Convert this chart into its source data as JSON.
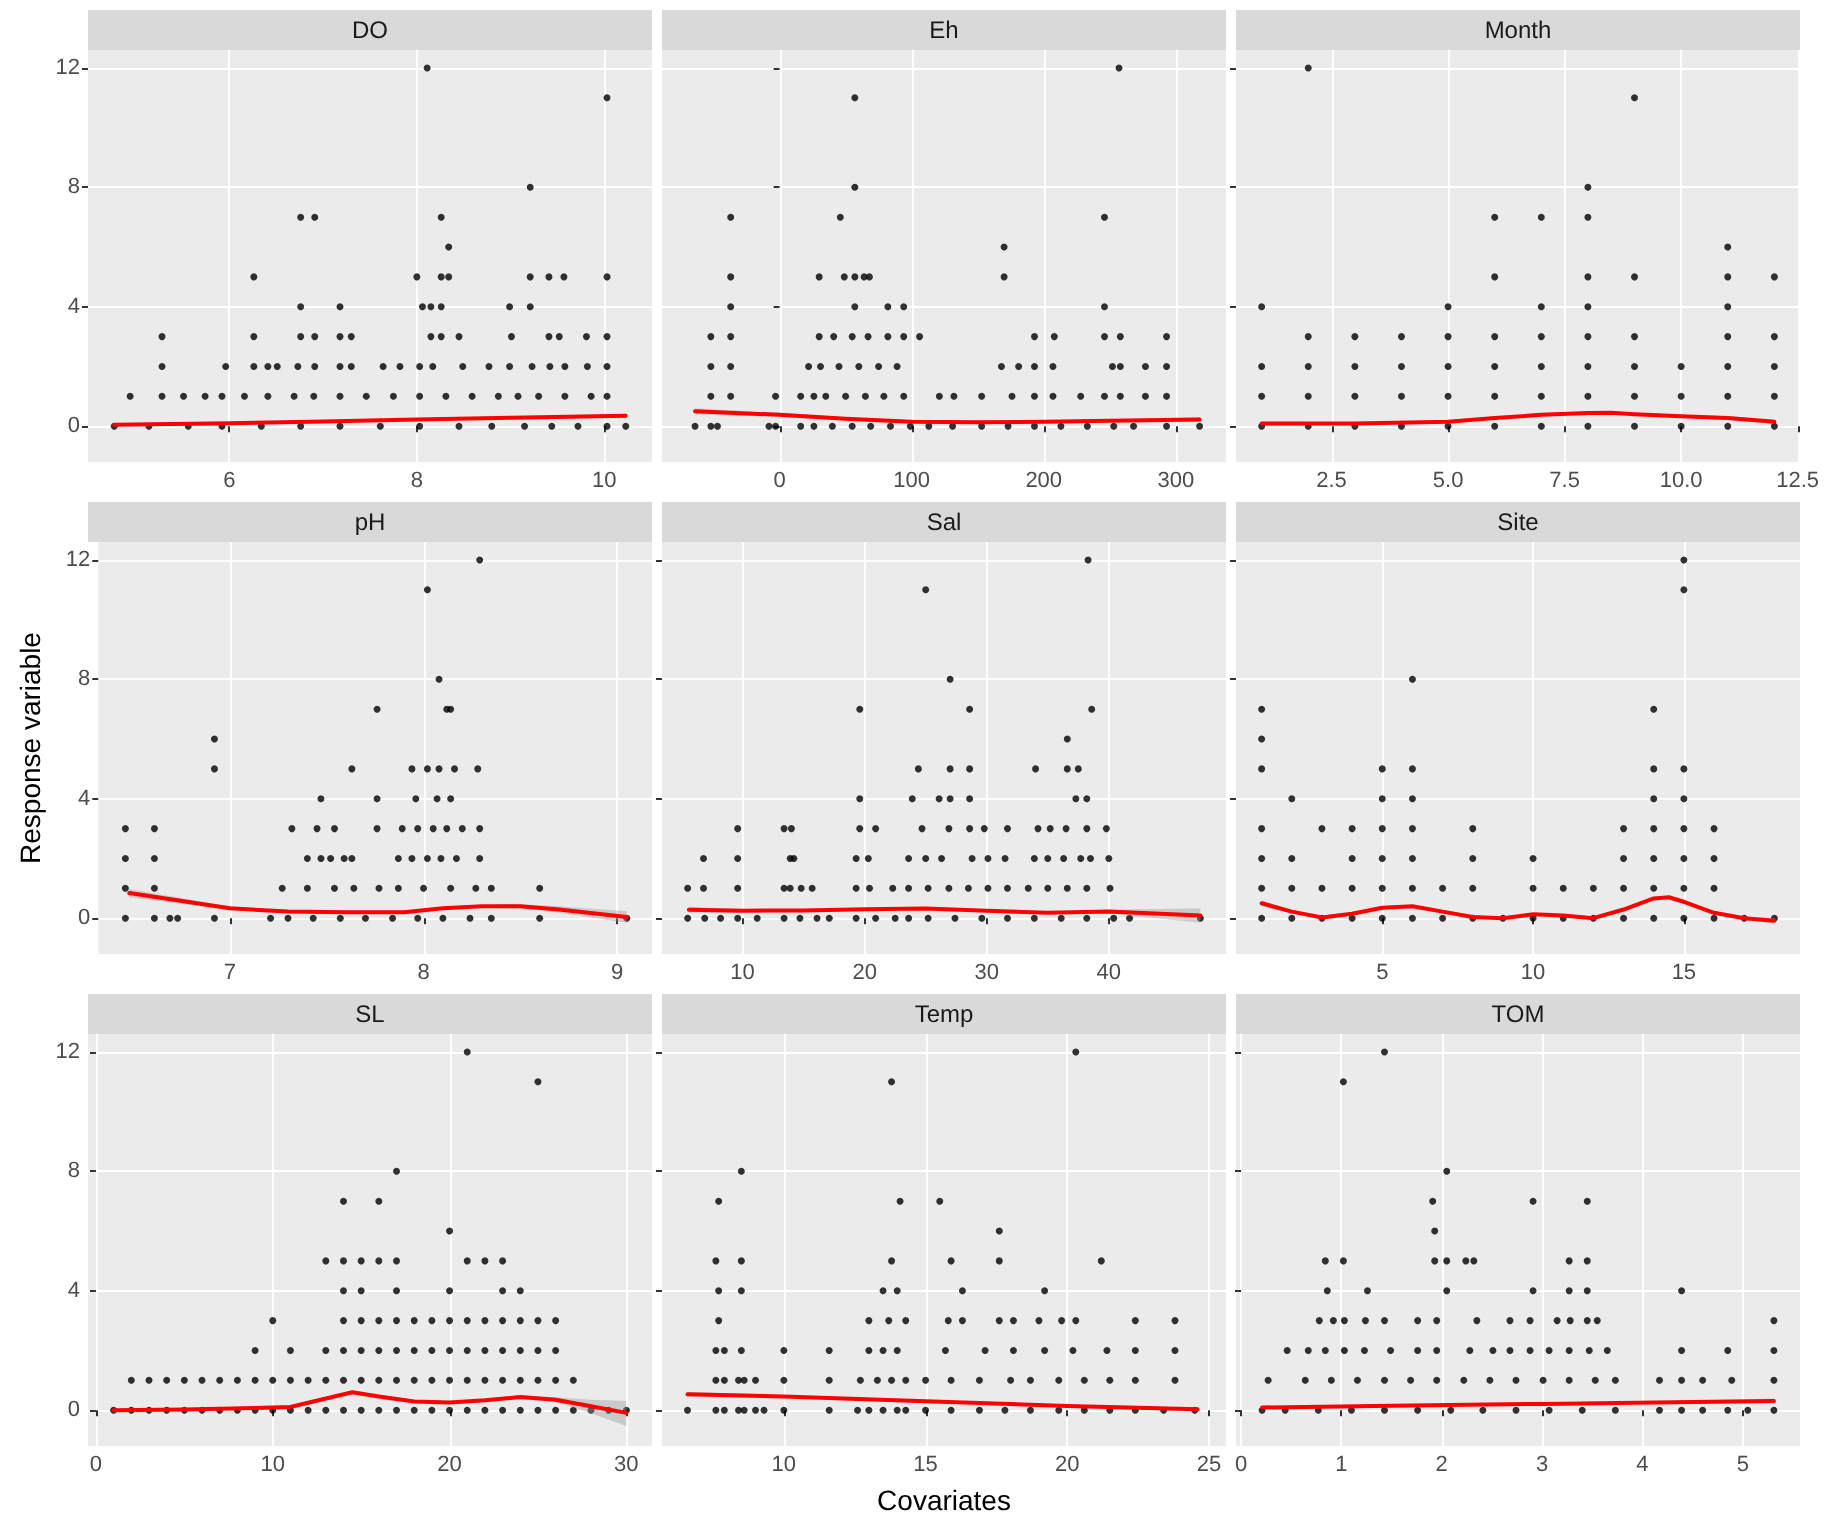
{
  "chart_data": [
    {
      "type": "scatter",
      "title": "DO",
      "marker": "circle",
      "grid": true,
      "xlim": [
        4.49,
        10.51
      ],
      "xticks": [
        6,
        8,
        10
      ],
      "ylim": [
        -1.2,
        12.6
      ],
      "yticks": [
        0,
        4,
        8,
        12
      ],
      "series": [
        {
          "color": "#000000",
          "x": [
            8.11,
            10.03,
            9.21,
            6.76,
            6.91,
            8.26,
            8.34,
            6.26,
            8.0,
            8.26,
            8.34,
            9.21,
            9.41,
            9.57,
            10.03,
            6.76,
            7.18,
            8.06,
            8.15,
            8.26,
            8.99,
            9.21,
            5.28,
            6.26,
            6.76,
            6.91,
            7.18,
            7.3,
            8.15,
            8.26,
            8.45,
            9.01,
            9.41,
            9.52,
            9.81,
            10.03,
            5.28,
            5.96,
            6.26,
            6.41,
            6.51,
            6.73,
            6.91,
            7.18,
            7.3,
            7.64,
            7.82,
            8.03,
            8.17,
            8.49,
            8.77,
            8.99,
            9.23,
            9.42,
            9.58,
            9.82,
            10.03,
            4.94,
            5.28,
            5.51,
            5.74,
            5.92,
            6.16,
            6.41,
            6.69,
            6.9,
            7.18,
            7.46,
            7.75,
            8.03,
            8.31,
            8.59,
            8.87,
            9.08,
            9.3,
            9.58,
            9.86,
            10.03,
            4.77,
            5.14,
            5.56,
            5.92,
            6.34,
            6.76,
            7.18,
            7.61,
            8.03,
            8.45,
            8.8,
            9.15,
            9.44,
            9.72,
            10.03,
            10.23
          ],
          "values": [
            12,
            11,
            8,
            7,
            7,
            7,
            6,
            5,
            5,
            5,
            5,
            5,
            5,
            5,
            5,
            4,
            4,
            4,
            4,
            4,
            4,
            4,
            3,
            3,
            3,
            3,
            3,
            3,
            3,
            3,
            3,
            3,
            3,
            3,
            3,
            3,
            2,
            2,
            2,
            2,
            2,
            2,
            2,
            2,
            2,
            2,
            2,
            2,
            2,
            2,
            2,
            2,
            2,
            2,
            2,
            2,
            2,
            1,
            1,
            1,
            1,
            1,
            1,
            1,
            1,
            1,
            1,
            1,
            1,
            1,
            1,
            1,
            1,
            1,
            1,
            1,
            1,
            1,
            0,
            0,
            0,
            0,
            0,
            0,
            0,
            0,
            0,
            0,
            0,
            0,
            0,
            0,
            0,
            0
          ]
        },
        {
          "type": "line",
          "color": "#ff0000",
          "marker": "none",
          "x": [
            4.77,
            6,
            7,
            8,
            9,
            10.23
          ],
          "values": [
            0.05,
            0.1,
            0.16,
            0.22,
            0.28,
            0.35
          ],
          "lower": [
            0,
            0.06,
            0.13,
            0.19,
            0.24,
            0.28
          ],
          "upper": [
            0.1,
            0.14,
            0.19,
            0.25,
            0.32,
            0.42
          ]
        }
      ]
    },
    {
      "type": "scatter",
      "title": "Eh",
      "marker": "circle",
      "grid": true,
      "tick_labels": "x",
      "xlim": [
        -89,
        338
      ],
      "xticks": [
        0,
        100,
        200,
        300
      ],
      "ylim": [
        -1.2,
        12.6
      ],
      "yticks": [
        0,
        4,
        8,
        12
      ],
      "series": [
        {
          "color": "#000000",
          "x": [
            57,
            257,
            57,
            -37,
            46,
            246,
            170,
            -37,
            30,
            49,
            57,
            64,
            68,
            170,
            -37,
            57,
            82,
            94,
            246,
            -52,
            -37,
            30,
            41,
            55,
            67,
            82,
            94,
            106,
            193,
            208,
            246,
            258,
            293,
            -52,
            -37,
            22,
            31,
            45,
            60,
            75,
            89,
            168,
            181,
            193,
            207,
            252,
            258,
            277,
            293,
            -52,
            -37,
            -3,
            16,
            26,
            35,
            50,
            65,
            79,
            94,
            121,
            132,
            153,
            176,
            193,
            207,
            228,
            246,
            258,
            277,
            293,
            -64,
            -52,
            -47,
            -8,
            -3,
            16,
            26,
            40,
            55,
            69,
            84,
            99,
            113,
            131,
            153,
            173,
            193,
            213,
            233,
            253,
            268,
            293,
            318
          ],
          "values": [
            11,
            12,
            8,
            7,
            7,
            7,
            6,
            5,
            5,
            5,
            5,
            5,
            5,
            5,
            4,
            4,
            4,
            4,
            4,
            3,
            3,
            3,
            3,
            3,
            3,
            3,
            3,
            3,
            3,
            3,
            3,
            3,
            3,
            2,
            2,
            2,
            2,
            2,
            2,
            2,
            2,
            2,
            2,
            2,
            2,
            2,
            2,
            2,
            2,
            1,
            1,
            1,
            1,
            1,
            1,
            1,
            1,
            1,
            1,
            1,
            1,
            1,
            1,
            1,
            1,
            1,
            1,
            1,
            1,
            1,
            0,
            0,
            0,
            0,
            0,
            0,
            0,
            0,
            0,
            0,
            0,
            0,
            0,
            0,
            0,
            0,
            0,
            0,
            0,
            0,
            0,
            0,
            0
          ]
        },
        {
          "type": "line",
          "color": "#ff0000",
          "marker": "none",
          "x": [
            -64,
            0,
            50,
            100,
            150,
            200,
            250,
            318
          ],
          "values": [
            0.5,
            0.38,
            0.25,
            0.15,
            0.13,
            0.15,
            0.18,
            0.22
          ],
          "lower": [
            0.4,
            0.31,
            0.2,
            0.11,
            0.09,
            0.11,
            0.13,
            0.14
          ],
          "upper": [
            0.6,
            0.45,
            0.3,
            0.19,
            0.17,
            0.19,
            0.23,
            0.3
          ]
        }
      ]
    },
    {
      "type": "scatter",
      "title": "Month",
      "marker": "circle",
      "grid": true,
      "tick_labels": "x",
      "xlim": [
        0.45,
        12.55
      ],
      "xticks": [
        2.5,
        {
          "value": 5,
          "label": "5.0"
        },
        7.5,
        {
          "value": 10,
          "label": "10.0"
        },
        12.5
      ],
      "ylim": [
        -1.2,
        12.6
      ],
      "yticks": [
        0,
        4,
        8,
        12
      ],
      "series": [
        {
          "color": "#000000",
          "x": [
            1,
            1,
            1,
            1,
            2,
            2,
            2,
            2,
            2,
            3,
            3,
            3,
            3,
            4,
            4,
            4,
            4,
            5,
            5,
            5,
            5,
            5,
            6,
            6,
            6,
            6,
            6,
            6,
            7,
            7,
            7,
            7,
            7,
            7,
            8,
            8,
            8,
            8,
            8,
            8,
            8,
            8,
            9,
            9,
            9,
            9,
            9,
            9,
            10,
            10,
            10,
            11,
            11,
            11,
            11,
            11,
            11,
            11,
            12,
            12,
            12,
            12,
            12
          ],
          "values": [
            0,
            1,
            2,
            4,
            0,
            1,
            2,
            3,
            12,
            0,
            1,
            2,
            3,
            0,
            1,
            2,
            3,
            0,
            1,
            2,
            3,
            4,
            0,
            1,
            2,
            3,
            5,
            7,
            0,
            1,
            2,
            3,
            4,
            7,
            0,
            1,
            2,
            3,
            4,
            5,
            7,
            8,
            0,
            1,
            2,
            3,
            5,
            11,
            0,
            1,
            2,
            0,
            1,
            2,
            3,
            4,
            5,
            6,
            0,
            1,
            2,
            3,
            5
          ]
        },
        {
          "type": "line",
          "color": "#ff0000",
          "marker": "none",
          "x": [
            1,
            3,
            5,
            6,
            7,
            8,
            8.5,
            9,
            10,
            11,
            12
          ],
          "values": [
            0.09,
            0.09,
            0.15,
            0.27,
            0.38,
            0.44,
            0.45,
            0.4,
            0.33,
            0.27,
            0.15
          ],
          "lower": [
            0.03,
            0.05,
            0.11,
            0.22,
            0.33,
            0.39,
            0.4,
            0.35,
            0.28,
            0.21,
            0.08
          ],
          "upper": [
            0.15,
            0.13,
            0.19,
            0.32,
            0.43,
            0.49,
            0.5,
            0.45,
            0.38,
            0.33,
            0.22
          ]
        }
      ]
    },
    {
      "type": "scatter",
      "title": "pH",
      "ylabel": "Response variable",
      "marker": "circle",
      "grid": true,
      "xlim": [
        6.32,
        9.18
      ],
      "xticks": [
        7,
        8,
        9
      ],
      "ylim": [
        -1.2,
        12.6
      ],
      "yticks": [
        0,
        4,
        8,
        12
      ],
      "series": [
        {
          "color": "#000000",
          "x": [
            8.29,
            8.02,
            8.08,
            7.76,
            8.12,
            8.14,
            6.92,
            6.92,
            7.63,
            7.94,
            8.02,
            8.08,
            8.16,
            8.28,
            7.47,
            7.76,
            7.96,
            8.07,
            8.14,
            6.46,
            6.61,
            7.32,
            7.45,
            7.54,
            7.76,
            7.89,
            7.97,
            8.05,
            8.12,
            8.2,
            8.29,
            6.46,
            6.61,
            7.4,
            7.47,
            7.52,
            7.59,
            7.63,
            7.87,
            7.94,
            8.02,
            8.09,
            8.17,
            8.29,
            6.46,
            6.61,
            7.27,
            7.4,
            7.54,
            7.64,
            7.77,
            7.87,
            8.0,
            8.14,
            8.27,
            8.35,
            8.6,
            6.46,
            6.61,
            6.69,
            6.73,
            6.92,
            7.21,
            7.3,
            7.43,
            7.57,
            7.7,
            7.84,
            7.97,
            8.1,
            8.24,
            8.35,
            8.6,
            9.05
          ],
          "values": [
            12,
            11,
            8,
            7,
            7,
            7,
            6,
            5,
            5,
            5,
            5,
            5,
            5,
            5,
            4,
            4,
            4,
            4,
            4,
            3,
            3,
            3,
            3,
            3,
            3,
            3,
            3,
            3,
            3,
            3,
            3,
            2,
            2,
            2,
            2,
            2,
            2,
            2,
            2,
            2,
            2,
            2,
            2,
            2,
            1,
            1,
            1,
            1,
            1,
            1,
            1,
            1,
            1,
            1,
            1,
            1,
            1,
            0,
            0,
            0,
            0,
            0,
            0,
            0,
            0,
            0,
            0,
            0,
            0,
            0,
            0,
            0,
            0,
            0
          ]
        },
        {
          "type": "line",
          "color": "#ff0000",
          "marker": "none",
          "x": [
            6.48,
            7,
            7.3,
            7.6,
            7.9,
            8.1,
            8.3,
            8.5,
            8.7,
            9.05
          ],
          "values": [
            0.84,
            0.33,
            0.22,
            0.2,
            0.2,
            0.33,
            0.4,
            0.4,
            0.29,
            0.04
          ],
          "lower": [
            0.7,
            0.27,
            0.18,
            0.16,
            0.16,
            0.29,
            0.35,
            0.33,
            0.18,
            -0.15
          ],
          "upper": [
            0.98,
            0.39,
            0.26,
            0.24,
            0.24,
            0.37,
            0.45,
            0.47,
            0.4,
            0.23
          ]
        }
      ]
    },
    {
      "type": "scatter",
      "title": "Sal",
      "marker": "circle",
      "grid": true,
      "tick_labels": "x",
      "xlim": [
        3.4,
        49.6
      ],
      "xticks": [
        10,
        20,
        30,
        40
      ],
      "ylim": [
        -1.2,
        12.6
      ],
      "yticks": [
        0,
        4,
        8,
        12
      ],
      "series": [
        {
          "color": "#000000",
          "x": [
            38.3,
            25,
            27,
            19.6,
            28.6,
            38.6,
            36.6,
            24.4,
            27,
            28.6,
            34,
            36.6,
            37.5,
            19.6,
            23.9,
            26.1,
            27,
            28.6,
            37.3,
            38.2,
            9.6,
            13.4,
            14.0,
            19.6,
            20.9,
            24.7,
            26.9,
            28.6,
            29.8,
            31.7,
            34.2,
            35.2,
            36.5,
            38.2,
            39.8,
            6.8,
            9.6,
            13.9,
            14.2,
            19.3,
            20.3,
            23.6,
            25,
            26.3,
            28.8,
            30.1,
            31.5,
            33.9,
            35,
            36.3,
            37.7,
            38.5,
            40,
            5.5,
            6.8,
            9.6,
            13.4,
            13.9,
            14.8,
            15.7,
            19.3,
            20.4,
            22.3,
            23.6,
            25.2,
            26.9,
            28.5,
            30.1,
            31.7,
            33.4,
            35,
            36.6,
            38.2,
            40.1,
            5.5,
            6.9,
            8.2,
            9.6,
            11.2,
            13.4,
            14.7,
            16.1,
            17.1,
            19.3,
            20.9,
            22.5,
            23.6,
            25.2,
            27.4,
            29.6,
            31.7,
            33.9,
            36.1,
            38.2,
            40.4,
            41.7,
            47.5
          ],
          "values": [
            12,
            11,
            8,
            7,
            7,
            7,
            6,
            5,
            5,
            5,
            5,
            5,
            5,
            4,
            4,
            4,
            4,
            4,
            4,
            4,
            3,
            3,
            3,
            3,
            3,
            3,
            3,
            3,
            3,
            3,
            3,
            3,
            3,
            3,
            3,
            2,
            2,
            2,
            2,
            2,
            2,
            2,
            2,
            2,
            2,
            2,
            2,
            2,
            2,
            2,
            2,
            2,
            2,
            1,
            1,
            1,
            1,
            1,
            1,
            1,
            1,
            1,
            1,
            1,
            1,
            1,
            1,
            1,
            1,
            1,
            1,
            1,
            1,
            1,
            0,
            0,
            0,
            0,
            0,
            0,
            0,
            0,
            0,
            0,
            0,
            0,
            0,
            0,
            0,
            0,
            0,
            0,
            0,
            0,
            0,
            0,
            0
          ]
        },
        {
          "type": "line",
          "color": "#ff0000",
          "marker": "none",
          "x": [
            5.6,
            10,
            15,
            20,
            25,
            30,
            35,
            40,
            47.5
          ],
          "values": [
            0.28,
            0.25,
            0.26,
            0.3,
            0.32,
            0.25,
            0.18,
            0.22,
            0.09
          ],
          "lower": [
            0.18,
            0.19,
            0.21,
            0.26,
            0.28,
            0.21,
            0.14,
            0.16,
            -0.15
          ],
          "upper": [
            0.38,
            0.31,
            0.31,
            0.34,
            0.36,
            0.29,
            0.22,
            0.28,
            0.33
          ]
        }
      ]
    },
    {
      "type": "scatter",
      "title": "Site",
      "marker": "circle",
      "grid": true,
      "tick_labels": "x",
      "xlim": [
        0.15,
        18.85
      ],
      "xticks": [
        5,
        10,
        15
      ],
      "ylim": [
        -1.2,
        12.6
      ],
      "yticks": [
        0,
        4,
        8,
        12
      ],
      "series": [
        {
          "color": "#000000",
          "x": [
            1,
            1,
            1,
            1,
            1,
            1,
            1,
            2,
            2,
            2,
            2,
            3,
            3,
            3,
            4,
            4,
            4,
            4,
            5,
            5,
            5,
            5,
            5,
            5,
            6,
            6,
            6,
            6,
            6,
            6,
            6,
            7,
            7,
            8,
            8,
            8,
            8,
            9,
            10,
            10,
            10,
            11,
            11,
            12,
            12,
            13,
            13,
            13,
            13,
            14,
            14,
            14,
            14,
            14,
            14,
            14,
            15,
            15,
            15,
            15,
            15,
            15,
            15,
            15,
            16,
            16,
            16,
            16,
            17,
            18
          ],
          "values": [
            0,
            1,
            2,
            3,
            5,
            6,
            7,
            0,
            1,
            2,
            4,
            0,
            1,
            3,
            0,
            1,
            2,
            3,
            0,
            1,
            2,
            3,
            4,
            5,
            0,
            1,
            2,
            3,
            4,
            5,
            8,
            0,
            1,
            0,
            1,
            2,
            3,
            0,
            0,
            1,
            2,
            0,
            1,
            0,
            1,
            0,
            1,
            2,
            3,
            0,
            1,
            2,
            3,
            4,
            5,
            7,
            0,
            1,
            2,
            3,
            4,
            5,
            11,
            12,
            0,
            1,
            2,
            3,
            0,
            0
          ]
        },
        {
          "type": "line",
          "color": "#ff0000",
          "marker": "none",
          "x": [
            1,
            2,
            3,
            4,
            5,
            6,
            7,
            8,
            9,
            10,
            11,
            12,
            13,
            14,
            14.5,
            15,
            16,
            17,
            18
          ],
          "values": [
            0.5,
            0.22,
            0.02,
            0.15,
            0.35,
            0.4,
            0.22,
            0.04,
            0,
            0.13,
            0.09,
            0,
            0.29,
            0.66,
            0.7,
            0.55,
            0.18,
            0,
            -0.09
          ],
          "lower": [
            0.4,
            0.17,
            -0.03,
            0.1,
            0.3,
            0.35,
            0.17,
            -0.01,
            -0.05,
            0.08,
            0.04,
            -0.05,
            0.24,
            0.61,
            0.65,
            0.5,
            0.13,
            -0.05,
            -0.19
          ],
          "upper": [
            0.6,
            0.27,
            0.07,
            0.2,
            0.4,
            0.45,
            0.27,
            0.09,
            0.05,
            0.18,
            0.14,
            0.05,
            0.34,
            0.71,
            0.75,
            0.6,
            0.23,
            0.05,
            0.01
          ]
        }
      ]
    },
    {
      "type": "scatter",
      "title": "SL",
      "marker": "circle",
      "grid": true,
      "xlim": [
        -0.45,
        31.45
      ],
      "xticks": [
        0,
        10,
        20,
        30
      ],
      "ylim": [
        -1.2,
        12.6
      ],
      "yticks": [
        0,
        4,
        8,
        12
      ],
      "series": [
        {
          "color": "#000000",
          "x": [
            1,
            2,
            2,
            3,
            3,
            4,
            4,
            5,
            5,
            6,
            6,
            7,
            7,
            8,
            8,
            9,
            9,
            9,
            10,
            10,
            10,
            11,
            11,
            11,
            12,
            12,
            13,
            13,
            13,
            13,
            14,
            14,
            14,
            14,
            14,
            14,
            14,
            15,
            15,
            15,
            15,
            15,
            15,
            16,
            16,
            16,
            16,
            16,
            16,
            17,
            17,
            17,
            17,
            17,
            17,
            17,
            18,
            18,
            18,
            18,
            19,
            19,
            19,
            19,
            20,
            20,
            20,
            20,
            20,
            20,
            21,
            21,
            21,
            21,
            21,
            21,
            22,
            22,
            22,
            22,
            22,
            23,
            23,
            23,
            23,
            23,
            23,
            24,
            24,
            24,
            24,
            24,
            25,
            25,
            25,
            25,
            25,
            26,
            26,
            26,
            26,
            27,
            27,
            28,
            29,
            30
          ],
          "values": [
            0,
            0,
            1,
            0,
            1,
            0,
            1,
            0,
            1,
            0,
            1,
            0,
            1,
            0,
            1,
            0,
            1,
            2,
            0,
            1,
            3,
            0,
            1,
            2,
            0,
            1,
            0,
            1,
            2,
            5,
            0,
            1,
            2,
            3,
            4,
            5,
            7,
            0,
            1,
            2,
            3,
            4,
            5,
            0,
            1,
            2,
            3,
            5,
            7,
            0,
            1,
            2,
            3,
            4,
            5,
            8,
            0,
            1,
            2,
            3,
            0,
            1,
            2,
            3,
            0,
            1,
            2,
            3,
            4,
            6,
            0,
            1,
            2,
            3,
            5,
            12,
            0,
            1,
            2,
            3,
            5,
            0,
            1,
            2,
            3,
            4,
            5,
            0,
            1,
            2,
            3,
            4,
            0,
            1,
            2,
            3,
            11,
            0,
            1,
            2,
            3,
            0,
            1,
            0,
            0,
            0
          ]
        },
        {
          "type": "line",
          "color": "#ff0000",
          "marker": "none",
          "x": [
            1,
            5,
            9,
            11,
            12,
            14.5,
            16,
            18,
            20,
            22,
            24,
            26,
            28,
            30
          ],
          "values": [
            0,
            0.02,
            0.07,
            0.11,
            0.25,
            0.6,
            0.46,
            0.29,
            0.26,
            0.33,
            0.44,
            0.35,
            0.13,
            -0.09
          ],
          "lower": [
            -0.05,
            -0.02,
            0.03,
            0.07,
            0.2,
            0.54,
            0.41,
            0.24,
            0.21,
            0.28,
            0.38,
            0.27,
            -0.1,
            -0.53
          ],
          "upper": [
            0.05,
            0.06,
            0.11,
            0.15,
            0.3,
            0.66,
            0.51,
            0.34,
            0.31,
            0.38,
            0.5,
            0.43,
            0.35,
            0.31
          ]
        }
      ]
    },
    {
      "type": "scatter",
      "title": "Temp",
      "xlabel": "Covariates",
      "marker": "circle",
      "grid": true,
      "tick_labels": "x",
      "xlim": [
        5.7,
        25.6
      ],
      "xticks": [
        10,
        15,
        20,
        25
      ],
      "ylim": [
        -1.2,
        12.6
      ],
      "yticks": [
        0,
        4,
        8,
        12
      ],
      "series": [
        {
          "color": "#000000",
          "x": [
            20.3,
            13.8,
            8.5,
            7.7,
            14.1,
            15.5,
            17.6,
            7.6,
            8.5,
            13.8,
            15.9,
            17.6,
            21.2,
            7.7,
            8.5,
            13.5,
            14,
            16.3,
            19.2,
            7.7,
            13,
            13.7,
            14.3,
            15.8,
            16.3,
            17.6,
            18.1,
            19,
            19.8,
            20.3,
            22.4,
            23.8,
            7.6,
            7.9,
            8.5,
            10,
            11.6,
            13,
            13.5,
            14,
            15.7,
            17.1,
            18.1,
            19.2,
            20.2,
            21.4,
            22.4,
            23.8,
            7.6,
            7.9,
            8.4,
            8.6,
            9,
            10,
            11.6,
            12.7,
            13.3,
            13.8,
            14.3,
            15,
            15.9,
            16.9,
            18,
            18.7,
            19.7,
            20.6,
            21.5,
            22.4,
            23.8,
            6.6,
            7.6,
            7.9,
            8.4,
            8.6,
            9,
            9.3,
            10,
            11.6,
            12.6,
            13,
            13.5,
            14,
            14.3,
            15,
            15.9,
            16.9,
            17.8,
            18.7,
            19.7,
            20.6,
            21.5,
            22.4,
            23.4,
            24.5
          ],
          "values": [
            12,
            11,
            8,
            7,
            7,
            7,
            6,
            5,
            5,
            5,
            5,
            5,
            5,
            4,
            4,
            4,
            4,
            4,
            4,
            3,
            3,
            3,
            3,
            3,
            3,
            3,
            3,
            3,
            3,
            3,
            3,
            3,
            2,
            2,
            2,
            2,
            2,
            2,
            2,
            2,
            2,
            2,
            2,
            2,
            2,
            2,
            2,
            2,
            1,
            1,
            1,
            1,
            1,
            1,
            1,
            1,
            1,
            1,
            1,
            1,
            1,
            1,
            1,
            1,
            1,
            1,
            1,
            1,
            1,
            0,
            0,
            0,
            0,
            0,
            0,
            0,
            0,
            0,
            0,
            0,
            0,
            0,
            0,
            0,
            0,
            0,
            0,
            0,
            0,
            0,
            0,
            0,
            0,
            0
          ]
        },
        {
          "type": "line",
          "color": "#ff0000",
          "marker": "none",
          "x": [
            6.6,
            10,
            15,
            20,
            24.6
          ],
          "values": [
            0.53,
            0.46,
            0.3,
            0.14,
            0.03
          ],
          "lower": [
            0.45,
            0.41,
            0.27,
            0.1,
            -0.03
          ],
          "upper": [
            0.61,
            0.51,
            0.33,
            0.18,
            0.09
          ]
        }
      ]
    },
    {
      "type": "scatter",
      "title": "TOM",
      "marker": "circle",
      "grid": true,
      "tick_labels": "x",
      "xlim": [
        -0.05,
        5.57
      ],
      "xticks": [
        0,
        1,
        2,
        3,
        4,
        5
      ],
      "ylim": [
        -1.2,
        12.6
      ],
      "yticks": [
        0,
        4,
        8,
        12
      ],
      "series": [
        {
          "color": "#000000",
          "x": [
            1.43,
            1.02,
            2.05,
            1.91,
            2.91,
            3.45,
            1.93,
            0.84,
            1.02,
            1.93,
            2.05,
            2.24,
            2.32,
            3.27,
            3.45,
            0.86,
            1.26,
            2.05,
            2.91,
            3.27,
            3.45,
            4.39,
            0.78,
            0.92,
            1.03,
            1.24,
            1.43,
            1.76,
            1.95,
            2.35,
            2.68,
            2.88,
            3.15,
            3.28,
            3.45,
            3.55,
            5.31,
            0.46,
            0.67,
            0.84,
            1.03,
            1.23,
            1.49,
            1.76,
            1.95,
            2.28,
            2.51,
            2.68,
            2.88,
            3.07,
            3.27,
            3.47,
            3.65,
            4.39,
            4.85,
            5.31,
            0.27,
            0.64,
            0.9,
            1.16,
            1.43,
            1.69,
            1.95,
            2.22,
            2.48,
            2.74,
            3.01,
            3.27,
            3.53,
            3.73,
            4.17,
            4.39,
            4.6,
            4.89,
            5.31,
            0.21,
            0.44,
            0.77,
            1.1,
            1.43,
            1.76,
            2.09,
            2.41,
            2.74,
            3.07,
            3.4,
            3.73,
            4.17,
            4.39,
            4.6,
            4.85,
            5.05,
            5.31
          ],
          "values": [
            12,
            11,
            8,
            7,
            7,
            7,
            6,
            5,
            5,
            5,
            5,
            5,
            5,
            5,
            5,
            4,
            4,
            4,
            4,
            4,
            4,
            4,
            3,
            3,
            3,
            3,
            3,
            3,
            3,
            3,
            3,
            3,
            3,
            3,
            3,
            3,
            3,
            2,
            2,
            2,
            2,
            2,
            2,
            2,
            2,
            2,
            2,
            2,
            2,
            2,
            2,
            2,
            2,
            2,
            2,
            2,
            1,
            1,
            1,
            1,
            1,
            1,
            1,
            1,
            1,
            1,
            1,
            1,
            1,
            1,
            1,
            1,
            1,
            1,
            1,
            0,
            0,
            0,
            0,
            0,
            0,
            0,
            0,
            0,
            0,
            0,
            0,
            0,
            0,
            0,
            0,
            0,
            0
          ]
        },
        {
          "type": "line",
          "color": "#ff0000",
          "marker": "none",
          "x": [
            0.21,
            1.5,
            3,
            4.5,
            5.31
          ],
          "values": [
            0.09,
            0.15,
            0.21,
            0.27,
            0.31
          ],
          "lower": [
            0.05,
            0.12,
            0.18,
            0.22,
            0.23
          ],
          "upper": [
            0.13,
            0.18,
            0.24,
            0.32,
            0.39
          ]
        }
      ]
    }
  ]
}
